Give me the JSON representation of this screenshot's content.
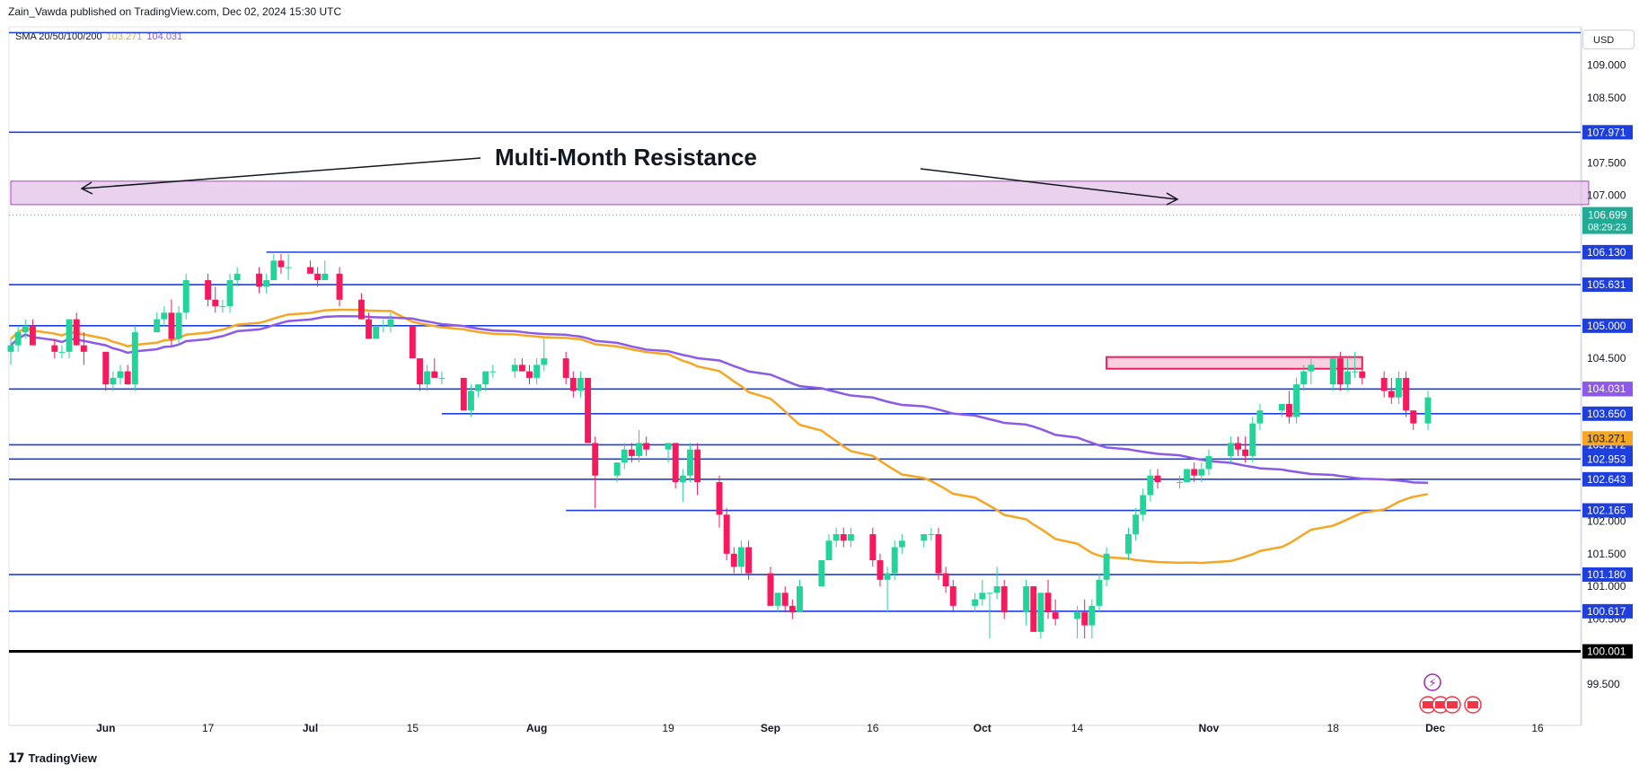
{
  "header": {
    "published": "Zain_Vawda published on TradingView.com, Dec 02, 2024 15:30 UTC",
    "sma_label": "SMA 20/50/100/200",
    "sma_val_1": "103.271",
    "sma_val_2": "104.031",
    "sma_color_1": "#f5a623",
    "sma_color_2": "#8c5ae6"
  },
  "currency": "USD",
  "brand": "TradingView",
  "chart_data": {
    "type": "candlestick",
    "annotation": "Multi-Month Resistance",
    "y_range": [
      99.25,
      109.45
    ],
    "y_ticks": [
      "109.000",
      "108.500",
      "107.500",
      "107.000",
      "104.500",
      "102.000",
      "101.500",
      "101.000",
      "100.500",
      "99.500"
    ],
    "x_tick_labels": [
      "Jun",
      "17",
      "Jul",
      "15",
      "Aug",
      "19",
      "Sep",
      "16",
      "Oct",
      "14",
      "Nov",
      "18",
      "Dec",
      "16"
    ],
    "x_tick_dates": [
      "2024-06-03",
      "2024-06-17",
      "2024-07-01",
      "2024-07-15",
      "2024-08-01",
      "2024-08-19",
      "2024-09-02",
      "2024-09-16",
      "2024-10-01",
      "2024-10-14",
      "2024-11-01",
      "2024-11-18",
      "2024-12-02",
      "2024-12-16"
    ],
    "x_start": "2024-05-21",
    "last_price": {
      "value": 106.699,
      "label": "106.699",
      "countdown": "08:29:23"
    },
    "sma_200_label": "104.031",
    "sma_100_label": "103.271",
    "horizontal_levels": [
      {
        "value": 109.5,
        "label": ""
      },
      {
        "value": 107.971,
        "label": "107.971"
      },
      {
        "value": 106.13,
        "label": "106.130"
      },
      {
        "value": 105.631,
        "label": "105.631"
      },
      {
        "value": 105.0,
        "label": "105.000"
      },
      {
        "value": 104.028,
        "label": "104.028"
      },
      {
        "value": 103.65,
        "label": "103.650"
      },
      {
        "value": 103.172,
        "label": "103.172"
      },
      {
        "value": 102.953,
        "label": "102.953"
      },
      {
        "value": 102.643,
        "label": "102.643"
      },
      {
        "value": 102.165,
        "label": "102.165"
      },
      {
        "value": 101.18,
        "label": "101.180"
      },
      {
        "value": 100.617,
        "label": "100.617"
      },
      {
        "value": 100.001,
        "label": "100.001"
      }
    ],
    "zones": [
      {
        "name": "resistance",
        "from": "2024-05-21",
        "to": "2024-12-23",
        "top": 107.22,
        "bottom": 106.86,
        "color": "#e1bee7"
      },
      {
        "name": "support",
        "from": "2024-10-18",
        "to": "2024-11-22",
        "top": 104.52,
        "bottom": 104.34,
        "color": "#f8bbd0"
      }
    ],
    "candles": [
      {
        "d": "2024-05-21",
        "o": 104.6,
        "h": 104.8,
        "l": 104.4,
        "c": 104.7
      },
      {
        "d": "2024-05-22",
        "o": 104.7,
        "h": 105.0,
        "l": 104.6,
        "c": 104.9
      },
      {
        "d": "2024-05-23",
        "o": 104.9,
        "h": 105.1,
        "l": 104.8,
        "c": 105.0
      },
      {
        "d": "2024-05-24",
        "o": 105.0,
        "h": 105.1,
        "l": 104.7,
        "c": 104.7
      },
      {
        "d": "2024-05-27",
        "o": 104.7,
        "h": 104.8,
        "l": 104.5,
        "c": 104.6
      },
      {
        "d": "2024-05-28",
        "o": 104.6,
        "h": 104.7,
        "l": 104.5,
        "c": 104.6
      },
      {
        "d": "2024-05-29",
        "o": 104.6,
        "h": 105.1,
        "l": 104.5,
        "c": 105.1
      },
      {
        "d": "2024-05-30",
        "o": 105.1,
        "h": 105.2,
        "l": 104.7,
        "c": 104.7
      },
      {
        "d": "2024-05-31",
        "o": 104.7,
        "h": 104.9,
        "l": 104.4,
        "c": 104.6
      },
      {
        "d": "2024-06-03",
        "o": 104.6,
        "h": 104.6,
        "l": 104.0,
        "c": 104.1
      },
      {
        "d": "2024-06-04",
        "o": 104.1,
        "h": 104.3,
        "l": 104.0,
        "c": 104.2
      },
      {
        "d": "2024-06-05",
        "o": 104.2,
        "h": 104.4,
        "l": 104.1,
        "c": 104.3
      },
      {
        "d": "2024-06-06",
        "o": 104.3,
        "h": 104.4,
        "l": 104.1,
        "c": 104.1
      },
      {
        "d": "2024-06-07",
        "o": 104.1,
        "h": 105.0,
        "l": 104.0,
        "c": 104.9
      },
      {
        "d": "2024-06-10",
        "o": 104.9,
        "h": 105.2,
        "l": 104.9,
        "c": 105.1
      },
      {
        "d": "2024-06-11",
        "o": 105.1,
        "h": 105.3,
        "l": 105.0,
        "c": 105.2
      },
      {
        "d": "2024-06-12",
        "o": 105.2,
        "h": 105.4,
        "l": 104.7,
        "c": 104.8
      },
      {
        "d": "2024-06-13",
        "o": 104.8,
        "h": 105.3,
        "l": 104.7,
        "c": 105.2
      },
      {
        "d": "2024-06-14",
        "o": 105.2,
        "h": 105.8,
        "l": 105.1,
        "c": 105.7
      },
      {
        "d": "2024-06-17",
        "o": 105.7,
        "h": 105.8,
        "l": 105.3,
        "c": 105.4
      },
      {
        "d": "2024-06-18",
        "o": 105.4,
        "h": 105.6,
        "l": 105.2,
        "c": 105.3
      },
      {
        "d": "2024-06-19",
        "o": 105.3,
        "h": 105.4,
        "l": 105.2,
        "c": 105.3
      },
      {
        "d": "2024-06-20",
        "o": 105.3,
        "h": 105.8,
        "l": 105.2,
        "c": 105.7
      },
      {
        "d": "2024-06-21",
        "o": 105.7,
        "h": 105.9,
        "l": 105.6,
        "c": 105.8
      },
      {
        "d": "2024-06-24",
        "o": 105.8,
        "h": 105.9,
        "l": 105.5,
        "c": 105.6
      },
      {
        "d": "2024-06-25",
        "o": 105.6,
        "h": 105.8,
        "l": 105.5,
        "c": 105.7
      },
      {
        "d": "2024-06-26",
        "o": 105.7,
        "h": 106.1,
        "l": 105.7,
        "c": 106.0
      },
      {
        "d": "2024-06-27",
        "o": 106.0,
        "h": 106.1,
        "l": 105.8,
        "c": 105.9
      },
      {
        "d": "2024-06-28",
        "o": 105.9,
        "h": 106.1,
        "l": 105.7,
        "c": 105.9
      },
      {
        "d": "2024-07-01",
        "o": 105.9,
        "h": 106.0,
        "l": 105.8,
        "c": 105.8
      },
      {
        "d": "2024-07-02",
        "o": 105.8,
        "h": 105.9,
        "l": 105.6,
        "c": 105.7
      },
      {
        "d": "2024-07-03",
        "o": 105.7,
        "h": 106.0,
        "l": 105.7,
        "c": 105.8
      },
      {
        "d": "2024-07-05",
        "o": 105.8,
        "h": 105.9,
        "l": 105.3,
        "c": 105.4
      },
      {
        "d": "2024-07-08",
        "o": 105.4,
        "h": 105.5,
        "l": 105.1,
        "c": 105.1
      },
      {
        "d": "2024-07-09",
        "o": 105.1,
        "h": 105.2,
        "l": 104.8,
        "c": 104.8
      },
      {
        "d": "2024-07-10",
        "o": 104.8,
        "h": 105.0,
        "l": 104.8,
        "c": 105.0
      },
      {
        "d": "2024-07-11",
        "o": 105.0,
        "h": 105.1,
        "l": 104.9,
        "c": 105.0
      },
      {
        "d": "2024-07-12",
        "o": 105.0,
        "h": 105.2,
        "l": 104.9,
        "c": 105.1
      },
      {
        "d": "2024-07-15",
        "o": 105.0,
        "h": 105.0,
        "l": 104.5,
        "c": 104.5
      },
      {
        "d": "2024-07-16",
        "o": 104.5,
        "h": 104.5,
        "l": 104.0,
        "c": 104.1
      },
      {
        "d": "2024-07-17",
        "o": 104.1,
        "h": 104.4,
        "l": 104.0,
        "c": 104.3
      },
      {
        "d": "2024-07-18",
        "o": 104.3,
        "h": 104.5,
        "l": 104.2,
        "c": 104.2
      },
      {
        "d": "2024-07-19",
        "o": 104.2,
        "h": 104.3,
        "l": 104.1,
        "c": 104.2
      },
      {
        "d": "2024-07-22",
        "o": 104.2,
        "h": 104.2,
        "l": 103.7,
        "c": 103.7
      },
      {
        "d": "2024-07-23",
        "o": 103.7,
        "h": 104.1,
        "l": 103.6,
        "c": 104.0
      },
      {
        "d": "2024-07-24",
        "o": 104.0,
        "h": 104.1,
        "l": 103.9,
        "c": 104.1
      },
      {
        "d": "2024-07-25",
        "o": 104.1,
        "h": 104.3,
        "l": 104.0,
        "c": 104.3
      },
      {
        "d": "2024-07-26",
        "o": 104.3,
        "h": 104.4,
        "l": 104.2,
        "c": 104.3
      },
      {
        "d": "2024-07-29",
        "o": 104.3,
        "h": 104.5,
        "l": 104.2,
        "c": 104.4
      },
      {
        "d": "2024-07-30",
        "o": 104.4,
        "h": 104.5,
        "l": 104.3,
        "c": 104.3
      },
      {
        "d": "2024-07-31",
        "o": 104.3,
        "h": 104.4,
        "l": 104.1,
        "c": 104.2
      },
      {
        "d": "2024-08-01",
        "o": 104.2,
        "h": 104.5,
        "l": 104.1,
        "c": 104.4
      },
      {
        "d": "2024-08-02",
        "o": 104.4,
        "h": 104.8,
        "l": 104.3,
        "c": 104.5
      },
      {
        "d": "2024-08-05",
        "o": 104.5,
        "h": 104.6,
        "l": 104.1,
        "c": 104.2
      },
      {
        "d": "2024-08-06",
        "o": 104.2,
        "h": 104.3,
        "l": 103.9,
        "c": 104.0
      },
      {
        "d": "2024-08-07",
        "o": 104.0,
        "h": 104.3,
        "l": 103.9,
        "c": 104.2
      },
      {
        "d": "2024-08-08",
        "o": 104.2,
        "h": 104.2,
        "l": 103.2,
        "c": 103.2
      },
      {
        "d": "2024-08-09",
        "o": 103.2,
        "h": 103.3,
        "l": 102.2,
        "c": 102.7
      },
      {
        "d": "2024-08-12",
        "o": 102.7,
        "h": 102.9,
        "l": 102.6,
        "c": 102.9
      },
      {
        "d": "2024-08-13",
        "o": 102.9,
        "h": 103.2,
        "l": 102.8,
        "c": 103.1
      },
      {
        "d": "2024-08-14",
        "o": 103.1,
        "h": 103.2,
        "l": 102.9,
        "c": 103.0
      },
      {
        "d": "2024-08-15",
        "o": 103.0,
        "h": 103.4,
        "l": 102.9,
        "c": 103.2
      },
      {
        "d": "2024-08-16",
        "o": 103.2,
        "h": 103.3,
        "l": 103.0,
        "c": 103.1
      },
      {
        "d": "2024-08-19",
        "o": 103.1,
        "h": 103.2,
        "l": 102.9,
        "c": 103.2
      },
      {
        "d": "2024-08-20",
        "o": 103.2,
        "h": 103.2,
        "l": 102.5,
        "c": 102.6
      },
      {
        "d": "2024-08-21",
        "o": 102.6,
        "h": 102.8,
        "l": 102.3,
        "c": 102.7
      },
      {
        "d": "2024-08-22",
        "o": 102.7,
        "h": 103.2,
        "l": 102.6,
        "c": 103.1
      },
      {
        "d": "2024-08-23",
        "o": 103.1,
        "h": 103.2,
        "l": 102.4,
        "c": 102.6
      },
      {
        "d": "2024-08-26",
        "o": 102.6,
        "h": 102.7,
        "l": 101.9,
        "c": 102.1
      },
      {
        "d": "2024-08-27",
        "o": 102.1,
        "h": 102.2,
        "l": 101.4,
        "c": 101.5
      },
      {
        "d": "2024-08-28",
        "o": 101.5,
        "h": 101.6,
        "l": 101.2,
        "c": 101.3
      },
      {
        "d": "2024-08-29",
        "o": 101.3,
        "h": 101.7,
        "l": 101.2,
        "c": 101.6
      },
      {
        "d": "2024-08-30",
        "o": 101.6,
        "h": 101.7,
        "l": 101.1,
        "c": 101.2
      },
      {
        "d": "2024-09-02",
        "o": 101.2,
        "h": 101.3,
        "l": 100.7,
        "c": 100.7
      },
      {
        "d": "2024-09-03",
        "o": 100.7,
        "h": 100.9,
        "l": 100.6,
        "c": 100.9
      },
      {
        "d": "2024-09-04",
        "o": 100.9,
        "h": 101.0,
        "l": 100.6,
        "c": 100.7
      },
      {
        "d": "2024-09-05",
        "o": 100.7,
        "h": 100.8,
        "l": 100.5,
        "c": 100.6
      },
      {
        "d": "2024-09-06",
        "o": 100.6,
        "h": 101.1,
        "l": 100.6,
        "c": 101.0
      },
      {
        "d": "2024-09-09",
        "o": 101.0,
        "h": 101.4,
        "l": 101.0,
        "c": 101.4
      },
      {
        "d": "2024-09-10",
        "o": 101.4,
        "h": 101.8,
        "l": 101.4,
        "c": 101.7
      },
      {
        "d": "2024-09-11",
        "o": 101.7,
        "h": 101.9,
        "l": 101.6,
        "c": 101.8
      },
      {
        "d": "2024-09-12",
        "o": 101.8,
        "h": 101.9,
        "l": 101.6,
        "c": 101.7
      },
      {
        "d": "2024-09-13",
        "o": 101.7,
        "h": 101.9,
        "l": 101.6,
        "c": 101.8
      },
      {
        "d": "2024-09-16",
        "o": 101.8,
        "h": 101.9,
        "l": 101.3,
        "c": 101.4
      },
      {
        "d": "2024-09-17",
        "o": 101.4,
        "h": 101.5,
        "l": 101.0,
        "c": 101.1
      },
      {
        "d": "2024-09-18",
        "o": 101.1,
        "h": 101.3,
        "l": 100.6,
        "c": 101.2
      },
      {
        "d": "2024-09-19",
        "o": 101.2,
        "h": 101.7,
        "l": 101.1,
        "c": 101.6
      },
      {
        "d": "2024-09-20",
        "o": 101.6,
        "h": 101.8,
        "l": 101.5,
        "c": 101.7
      },
      {
        "d": "2024-09-23",
        "o": 101.7,
        "h": 101.8,
        "l": 101.6,
        "c": 101.8
      },
      {
        "d": "2024-09-24",
        "o": 101.8,
        "h": 101.9,
        "l": 101.7,
        "c": 101.8
      },
      {
        "d": "2024-09-25",
        "o": 101.8,
        "h": 101.9,
        "l": 101.1,
        "c": 101.2
      },
      {
        "d": "2024-09-26",
        "o": 101.2,
        "h": 101.3,
        "l": 100.9,
        "c": 101.0
      },
      {
        "d": "2024-09-27",
        "o": 101.0,
        "h": 101.1,
        "l": 100.6,
        "c": 100.7
      },
      {
        "d": "2024-09-30",
        "o": 100.7,
        "h": 100.9,
        "l": 100.6,
        "c": 100.8
      },
      {
        "d": "2024-10-01",
        "o": 100.8,
        "h": 101.1,
        "l": 100.7,
        "c": 100.9
      },
      {
        "d": "2024-10-02",
        "o": 100.9,
        "h": 100.9,
        "l": 100.2,
        "c": 100.9
      },
      {
        "d": "2024-10-03",
        "o": 100.9,
        "h": 101.3,
        "l": 100.8,
        "c": 101.0
      },
      {
        "d": "2024-10-04",
        "o": 101.0,
        "h": 101.1,
        "l": 100.5,
        "c": 100.6
      },
      {
        "d": "2024-10-07",
        "o": 100.6,
        "h": 101.1,
        "l": 100.4,
        "c": 101.0
      },
      {
        "d": "2024-10-08",
        "o": 101.0,
        "h": 101.0,
        "l": 100.3,
        "c": 100.3
      },
      {
        "d": "2024-10-09",
        "o": 100.3,
        "h": 100.9,
        "l": 100.2,
        "c": 100.9
      },
      {
        "d": "2024-10-10",
        "o": 100.9,
        "h": 101.1,
        "l": 100.5,
        "c": 100.6
      },
      {
        "d": "2024-10-11",
        "o": 100.6,
        "h": 100.8,
        "l": 100.4,
        "c": 100.5
      },
      {
        "d": "2024-10-14",
        "o": 100.5,
        "h": 100.7,
        "l": 100.2,
        "c": 100.6
      },
      {
        "d": "2024-10-15",
        "o": 100.6,
        "h": 100.8,
        "l": 100.2,
        "c": 100.4
      },
      {
        "d": "2024-10-16",
        "o": 100.4,
        "h": 100.8,
        "l": 100.2,
        "c": 100.7
      },
      {
        "d": "2024-10-17",
        "o": 100.7,
        "h": 101.2,
        "l": 100.6,
        "c": 101.1
      },
      {
        "d": "2024-10-18",
        "o": 101.1,
        "h": 101.6,
        "l": 101.0,
        "c": 101.5
      },
      {
        "d": "2024-10-21",
        "o": 101.5,
        "h": 101.9,
        "l": 101.4,
        "c": 101.8
      },
      {
        "d": "2024-10-22",
        "o": 101.8,
        "h": 102.2,
        "l": 101.7,
        "c": 102.1
      },
      {
        "d": "2024-10-23",
        "o": 102.1,
        "h": 102.5,
        "l": 102.0,
        "c": 102.4
      },
      {
        "d": "2024-10-24",
        "o": 102.4,
        "h": 102.8,
        "l": 102.3,
        "c": 102.7
      },
      {
        "d": "2024-10-25",
        "o": 102.7,
        "h": 102.8,
        "l": 102.5,
        "c": 102.6
      },
      {
        "d": "2024-10-28",
        "o": 102.6,
        "h": 102.7,
        "l": 102.5,
        "c": 102.6
      },
      {
        "d": "2024-10-29",
        "o": 102.6,
        "h": 102.8,
        "l": 102.6,
        "c": 102.8
      },
      {
        "d": "2024-10-30",
        "o": 102.8,
        "h": 102.9,
        "l": 102.6,
        "c": 102.7
      },
      {
        "d": "2024-10-31",
        "o": 102.7,
        "h": 102.9,
        "l": 102.6,
        "c": 102.8
      },
      {
        "d": "2024-11-01",
        "o": 102.8,
        "h": 103.1,
        "l": 102.7,
        "c": 103.0
      },
      {
        "d": "2024-11-04",
        "o": 103.0,
        "h": 103.3,
        "l": 102.9,
        "c": 103.2
      },
      {
        "d": "2024-11-05",
        "o": 103.2,
        "h": 103.3,
        "l": 103.0,
        "c": 103.1
      },
      {
        "d": "2024-11-06",
        "o": 103.1,
        "h": 103.3,
        "l": 102.9,
        "c": 103.0
      },
      {
        "d": "2024-11-07",
        "o": 103.0,
        "h": 103.6,
        "l": 102.9,
        "c": 103.5
      },
      {
        "d": "2024-11-08",
        "o": 103.5,
        "h": 103.8,
        "l": 103.4,
        "c": 103.7
      },
      {
        "d": "2024-11-11",
        "o": 103.7,
        "h": 103.8,
        "l": 103.6,
        "c": 103.8
      },
      {
        "d": "2024-11-12",
        "o": 103.8,
        "h": 104.0,
        "l": 103.5,
        "c": 103.6
      },
      {
        "d": "2024-11-13",
        "o": 103.6,
        "h": 104.2,
        "l": 103.5,
        "c": 104.1
      },
      {
        "d": "2024-11-14",
        "o": 104.1,
        "h": 104.4,
        "l": 104.0,
        "c": 104.3
      },
      {
        "d": "2024-11-15",
        "o": 104.3,
        "h": 104.5,
        "l": 104.1,
        "c": 104.4
      },
      {
        "d": "2024-11-18",
        "o": 104.1,
        "h": 104.5,
        "l": 104.0,
        "c": 104.5
      },
      {
        "d": "2024-11-19",
        "o": 104.5,
        "h": 104.6,
        "l": 104.0,
        "c": 104.1
      },
      {
        "d": "2024-11-20",
        "o": 104.1,
        "h": 104.5,
        "l": 104.0,
        "c": 104.3
      },
      {
        "d": "2024-11-21",
        "o": 104.3,
        "h": 104.6,
        "l": 104.2,
        "c": 104.3
      },
      {
        "d": "2024-11-22",
        "o": 104.3,
        "h": 104.4,
        "l": 104.1,
        "c": 104.2
      },
      {
        "d": "2024-11-25",
        "o": 104.2,
        "h": 104.3,
        "l": 103.9,
        "c": 104.0
      },
      {
        "d": "2024-11-26",
        "o": 104.0,
        "h": 104.2,
        "l": 103.8,
        "c": 103.9
      },
      {
        "d": "2024-11-27",
        "o": 103.9,
        "h": 104.3,
        "l": 103.8,
        "c": 104.2
      },
      {
        "d": "2024-11-28",
        "o": 104.2,
        "h": 104.3,
        "l": 103.6,
        "c": 103.7
      },
      {
        "d": "2024-11-29",
        "o": 103.7,
        "h": 103.7,
        "l": 103.4,
        "c": 103.5
      },
      {
        "d": "2024-12-01",
        "o": 103.5,
        "h": 104.0,
        "l": 103.4,
        "c": 103.9
      }
    ]
  }
}
